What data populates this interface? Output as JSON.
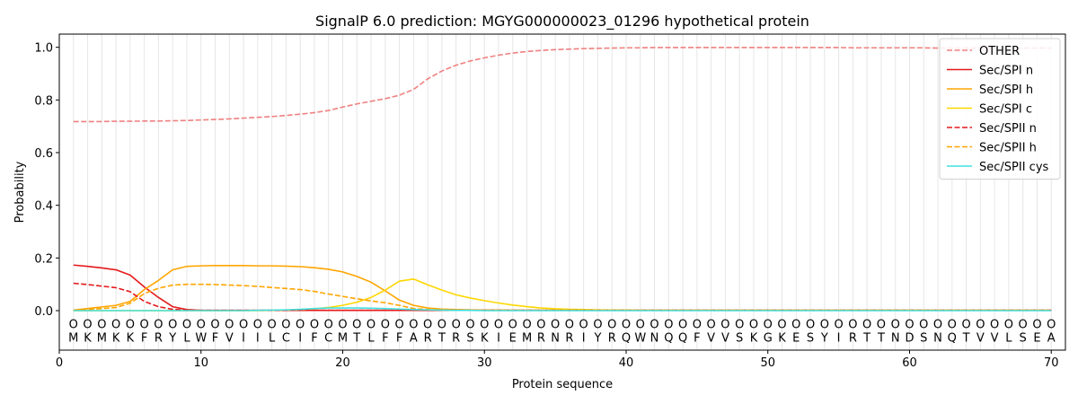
{
  "chart_data": {
    "type": "line",
    "title": "SignalP 6.0 prediction: MGYG000000023_01296 hypothetical protein",
    "xlabel": "Protein sequence",
    "ylabel": "Probability",
    "xlim": [
      0,
      71
    ],
    "ylim": [
      -0.15,
      1.05
    ],
    "xticks": [
      0,
      10,
      20,
      30,
      40,
      50,
      60,
      70
    ],
    "yticks": [
      0.0,
      0.2,
      0.4,
      0.6,
      0.8,
      1.0
    ],
    "ytick_labels": [
      "0.0",
      "0.2",
      "0.4",
      "0.6",
      "0.8",
      "1.0"
    ],
    "grid": "vertical lines at each residue",
    "legend_position": "top-right",
    "sequence": [
      "M",
      "K",
      "M",
      "K",
      "K",
      "F",
      "R",
      "Y",
      "L",
      "W",
      "F",
      "V",
      "I",
      "I",
      "L",
      "C",
      "I",
      "F",
      "C",
      "M",
      "T",
      "L",
      "F",
      "F",
      "A",
      "R",
      "T",
      "R",
      "S",
      "K",
      "I",
      "E",
      "M",
      "R",
      "N",
      "R",
      "I",
      "Y",
      "R",
      "Q",
      "W",
      "N",
      "Q",
      "Q",
      "F",
      "V",
      "V",
      "S",
      "K",
      "G",
      "K",
      "E",
      "S",
      "Y",
      "I",
      "R",
      "T",
      "T",
      "N",
      "D",
      "S",
      "N",
      "Q",
      "T",
      "V",
      "V",
      "L",
      "S",
      "E",
      "A"
    ],
    "position_marker": "O",
    "series": [
      {
        "name": "OTHER",
        "color": "#f08080",
        "dash": "dashed",
        "values": [
          0.718,
          0.718,
          0.718,
          0.719,
          0.719,
          0.72,
          0.72,
          0.721,
          0.722,
          0.724,
          0.726,
          0.728,
          0.731,
          0.734,
          0.737,
          0.741,
          0.746,
          0.752,
          0.76,
          0.773,
          0.785,
          0.795,
          0.805,
          0.818,
          0.84,
          0.88,
          0.91,
          0.932,
          0.948,
          0.96,
          0.97,
          0.978,
          0.984,
          0.988,
          0.991,
          0.993,
          0.995,
          0.996,
          0.997,
          0.998,
          0.998,
          0.999,
          0.999,
          0.999,
          0.999,
          0.999,
          0.999,
          0.999,
          0.999,
          0.999,
          0.999,
          0.999,
          0.999,
          0.999,
          0.999,
          0.998,
          0.998,
          0.998,
          0.998,
          0.998,
          0.998,
          0.997,
          0.997,
          0.997,
          0.997,
          0.997,
          0.997,
          0.997,
          0.997,
          0.997
        ]
      },
      {
        "name": "Sec/SPI n",
        "color": "#e41a1c",
        "dash": "solid",
        "values": [
          0.173,
          0.168,
          0.162,
          0.155,
          0.135,
          0.09,
          0.05,
          0.015,
          0.004,
          0.001,
          0.001,
          0.001,
          0.001,
          0.001,
          0.001,
          0.001,
          0.001,
          0.001,
          0.001,
          0.001,
          0.001,
          0.001,
          0.001,
          0.001,
          0.001,
          0.001,
          0.001,
          0.001,
          0.001,
          0.001,
          0.001,
          0.001,
          0.001,
          0.001,
          0.001,
          0.001,
          0.001,
          0.001,
          0.001,
          0.001,
          0.001,
          0.001,
          0.001,
          0.001,
          0.001,
          0.001,
          0.001,
          0.001,
          0.001,
          0.001,
          0.001,
          0.001,
          0.001,
          0.001,
          0.001,
          0.001,
          0.001,
          0.001,
          0.001,
          0.001,
          0.001,
          0.001,
          0.001,
          0.001,
          0.001,
          0.001,
          0.001,
          0.001,
          0.001,
          0.001
        ]
      },
      {
        "name": "Sec/SPI h",
        "color": "#ffa500",
        "dash": "solid",
        "values": [
          0.002,
          0.008,
          0.014,
          0.02,
          0.035,
          0.08,
          0.115,
          0.155,
          0.168,
          0.17,
          0.171,
          0.171,
          0.171,
          0.17,
          0.17,
          0.169,
          0.167,
          0.163,
          0.157,
          0.147,
          0.13,
          0.108,
          0.075,
          0.04,
          0.02,
          0.01,
          0.006,
          0.004,
          0.003,
          0.002,
          0.002,
          0.001,
          0.001,
          0.001,
          0.001,
          0.001,
          0.001,
          0.001,
          0.001,
          0.001,
          0.001,
          0.001,
          0.001,
          0.001,
          0.001,
          0.001,
          0.001,
          0.001,
          0.001,
          0.001,
          0.001,
          0.001,
          0.001,
          0.001,
          0.001,
          0.001,
          0.001,
          0.001,
          0.001,
          0.001,
          0.001,
          0.001,
          0.001,
          0.001,
          0.001,
          0.001,
          0.001,
          0.001,
          0.001,
          0.001
        ]
      },
      {
        "name": "Sec/SPI c",
        "color": "#ffd700",
        "dash": "solid",
        "values": [
          0.0,
          0.0,
          0.0,
          0.0,
          0.0,
          0.0,
          0.0,
          0.0,
          0.0,
          0.0,
          0.0,
          0.0,
          0.0,
          0.0,
          0.001,
          0.002,
          0.004,
          0.007,
          0.012,
          0.02,
          0.032,
          0.05,
          0.078,
          0.112,
          0.12,
          0.098,
          0.078,
          0.06,
          0.048,
          0.038,
          0.029,
          0.021,
          0.015,
          0.01,
          0.007,
          0.005,
          0.004,
          0.003,
          0.002,
          0.002,
          0.001,
          0.001,
          0.001,
          0.001,
          0.001,
          0.001,
          0.001,
          0.001,
          0.001,
          0.001,
          0.001,
          0.001,
          0.001,
          0.001,
          0.001,
          0.001,
          0.001,
          0.001,
          0.001,
          0.001,
          0.001,
          0.001,
          0.001,
          0.001,
          0.001,
          0.001,
          0.001,
          0.001,
          0.001,
          0.001
        ]
      },
      {
        "name": "Sec/SPII n",
        "color": "#e41a1c",
        "dash": "dashed",
        "values": [
          0.104,
          0.099,
          0.093,
          0.087,
          0.072,
          0.035,
          0.015,
          0.005,
          0.002,
          0.001,
          0.001,
          0.001,
          0.001,
          0.001,
          0.001,
          0.001,
          0.001,
          0.001,
          0.001,
          0.001,
          0.001,
          0.001,
          0.001,
          0.001,
          0.001,
          0.001,
          0.001,
          0.001,
          0.001,
          0.001,
          0.001,
          0.001,
          0.001,
          0.001,
          0.001,
          0.001,
          0.001,
          0.001,
          0.001,
          0.001,
          0.001,
          0.001,
          0.001,
          0.001,
          0.001,
          0.001,
          0.001,
          0.001,
          0.001,
          0.001,
          0.001,
          0.001,
          0.001,
          0.001,
          0.001,
          0.001,
          0.001,
          0.001,
          0.001,
          0.001,
          0.001,
          0.001,
          0.001,
          0.001,
          0.001,
          0.001,
          0.001,
          0.001,
          0.001,
          0.001
        ]
      },
      {
        "name": "Sec/SPII h",
        "color": "#ffa500",
        "dash": "dashed",
        "values": [
          0.001,
          0.004,
          0.008,
          0.012,
          0.028,
          0.065,
          0.085,
          0.097,
          0.1,
          0.1,
          0.099,
          0.097,
          0.095,
          0.092,
          0.088,
          0.084,
          0.08,
          0.073,
          0.063,
          0.054,
          0.045,
          0.037,
          0.03,
          0.02,
          0.008,
          0.004,
          0.002,
          0.001,
          0.001,
          0.001,
          0.001,
          0.001,
          0.001,
          0.001,
          0.001,
          0.001,
          0.001,
          0.001,
          0.001,
          0.001,
          0.001,
          0.001,
          0.001,
          0.001,
          0.001,
          0.001,
          0.001,
          0.001,
          0.001,
          0.001,
          0.001,
          0.001,
          0.001,
          0.001,
          0.001,
          0.001,
          0.001,
          0.001,
          0.001,
          0.001,
          0.001,
          0.001,
          0.001,
          0.001,
          0.001,
          0.001,
          0.001,
          0.001,
          0.001,
          0.001
        ]
      },
      {
        "name": "Sec/SPII cys",
        "color": "#40e0e0",
        "dash": "solid",
        "values": [
          0.0,
          0.0,
          0.0,
          0.0,
          0.0,
          0.0,
          0.0,
          0.0,
          0.0,
          0.0,
          0.0,
          0.0,
          0.0,
          0.001,
          0.002,
          0.003,
          0.005,
          0.008,
          0.01,
          0.01,
          0.01,
          0.009,
          0.008,
          0.006,
          0.004,
          0.003,
          0.002,
          0.001,
          0.001,
          0.0,
          0.0,
          0.0,
          0.0,
          0.0,
          0.0,
          0.0,
          0.0,
          0.0,
          0.0,
          0.0,
          0.0,
          0.0,
          0.0,
          0.0,
          0.0,
          0.0,
          0.0,
          0.0,
          0.0,
          0.0,
          0.0,
          0.0,
          0.0,
          0.0,
          0.0,
          0.0,
          0.0,
          0.0,
          0.0,
          0.0,
          0.0,
          0.0,
          0.0,
          0.0,
          0.0,
          0.0,
          0.0,
          0.0,
          0.0,
          0.0
        ]
      }
    ]
  }
}
